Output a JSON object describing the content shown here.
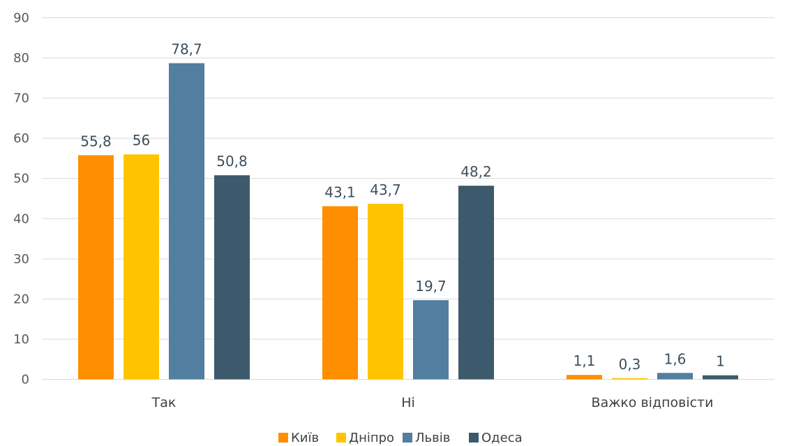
{
  "chart_data": {
    "type": "bar",
    "categories": [
      "Так",
      "Ні",
      "Важко відповісти"
    ],
    "series": [
      {
        "name": "Київ",
        "values": [
          55.8,
          43.1,
          1.1
        ],
        "labels": [
          "55,8",
          "43,1",
          "1,1"
        ],
        "color": "#ff8f00"
      },
      {
        "name": "Дніпро",
        "values": [
          56,
          43.7,
          0.3
        ],
        "labels": [
          "56",
          "43,7",
          "0,3"
        ],
        "color": "#ffc400"
      },
      {
        "name": "Львів",
        "values": [
          78.7,
          19.7,
          1.6
        ],
        "labels": [
          "78,7",
          "19,7",
          "1,6"
        ],
        "color": "#527e9f"
      },
      {
        "name": "Одеса",
        "values": [
          50.8,
          48.2,
          1
        ],
        "labels": [
          "50,8",
          "48,2",
          "1"
        ],
        "color": "#3c5a6b"
      }
    ],
    "ylim": [
      0,
      90
    ],
    "yticks": [
      0,
      10,
      20,
      30,
      40,
      50,
      60,
      70,
      80,
      90
    ],
    "grid": true,
    "legend": "bottom"
  }
}
